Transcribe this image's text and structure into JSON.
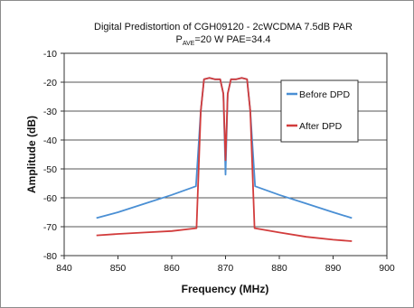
{
  "chart_data": {
    "type": "line",
    "title": "Digital Predistortion of CGH09120 - 2cWCDMA 7.5dB PAR",
    "subtitle": {
      "prefix": "P",
      "subscript": "AVE",
      "suffix": "=20 W PAE=34.4"
    },
    "xlabel": "Frequency (MHz)",
    "ylabel": "Amplitude (dB)",
    "xlim": [
      840,
      900
    ],
    "ylim": [
      -80,
      -10
    ],
    "xticks": [
      840,
      850,
      860,
      870,
      880,
      890,
      900
    ],
    "yticks": [
      -10,
      -20,
      -30,
      -40,
      -50,
      -60,
      -70,
      -80
    ],
    "grid": "horizontal",
    "legend_position": "top-right",
    "series": [
      {
        "name": "Before DPD",
        "color": "#4a8fd4",
        "x": [
          846,
          850,
          855,
          860,
          864.5,
          865.4,
          866,
          867,
          868,
          869,
          869.6,
          870,
          870.4,
          871,
          872,
          873,
          874,
          874.6,
          875.5,
          880,
          885,
          890,
          893.5
        ],
        "y": [
          -67,
          -65,
          -62,
          -59,
          -56,
          -30,
          -19,
          -18.5,
          -19,
          -19,
          -24,
          -52,
          -24,
          -19,
          -19,
          -18.5,
          -19,
          -30,
          -56,
          -59,
          -62,
          -65,
          -67
        ]
      },
      {
        "name": "After DPD",
        "color": "#d23c3c",
        "x": [
          846,
          850,
          855,
          860,
          864.6,
          865.4,
          866,
          867,
          868,
          869,
          869.6,
          870,
          870.4,
          871,
          872,
          873,
          874,
          874.6,
          875.4,
          880,
          885,
          890,
          893.5
        ],
        "y": [
          -73,
          -72.5,
          -72,
          -71.5,
          -70.5,
          -30,
          -19,
          -18.5,
          -19,
          -19,
          -24,
          -47,
          -24,
          -19,
          -19,
          -18.5,
          -19,
          -30,
          -70.5,
          -72,
          -73.5,
          -74.5,
          -75
        ]
      }
    ]
  }
}
